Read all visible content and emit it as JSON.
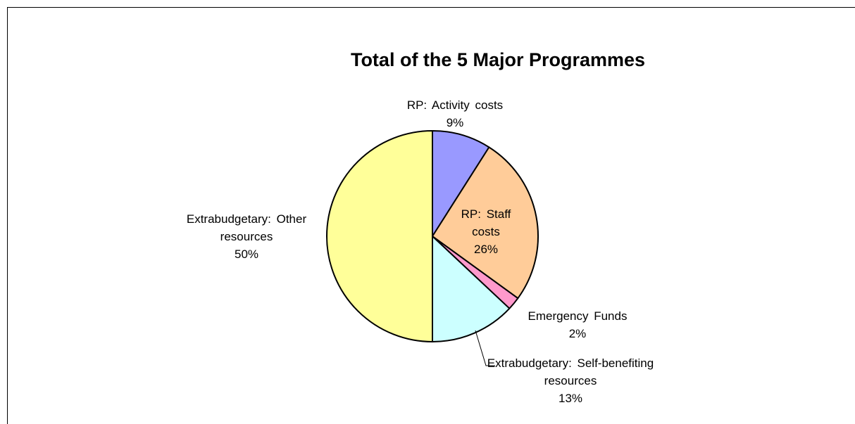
{
  "chart_data": {
    "type": "pie",
    "title": "Total of the 5 Major Programmes",
    "categories": [
      "RP: Activity costs",
      "RP: Staff costs",
      "Emergency Funds",
      "Extrabudgetary: Self-benefiting resources",
      "Extrabudgetary: Other resources"
    ],
    "values": [
      9,
      26,
      2,
      13,
      50
    ],
    "value_labels": [
      "9%",
      "26%",
      "2%",
      "13%",
      "50%"
    ],
    "colors": [
      "#9999ff",
      "#ffcc99",
      "#ff99cc",
      "#ccffff",
      "#ffff99"
    ]
  }
}
